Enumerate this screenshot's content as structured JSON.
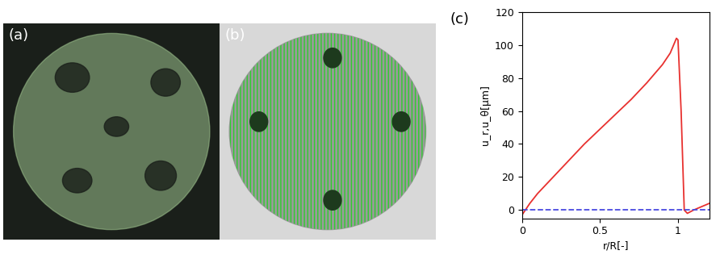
{
  "panel_labels": [
    "(a)",
    "(b)",
    "(c)"
  ],
  "chart_data": {
    "type": "line",
    "xlabel": "r/R[-]",
    "ylabel": "u_r,u_θ[μm]",
    "xlim": [
      0,
      1.2
    ],
    "xticks": [
      0,
      0.5,
      1
    ],
    "ylim": [
      -5,
      120
    ],
    "yticks": [
      0,
      20,
      40,
      60,
      80,
      100,
      120
    ],
    "grid": false,
    "series": [
      {
        "color": "#e8312f",
        "line_style": "solid",
        "x": [
          0,
          0.05,
          0.1,
          0.2,
          0.3,
          0.4,
          0.5,
          0.6,
          0.7,
          0.8,
          0.9,
          0.95,
          0.99,
          1.0,
          1.02,
          1.04,
          1.06,
          1.1,
          1.15,
          1.2
        ],
        "values": [
          -3,
          4,
          10,
          20,
          30,
          40,
          49,
          58,
          67,
          77,
          88,
          95,
          104,
          103,
          60,
          0,
          -2,
          0,
          2,
          4
        ]
      },
      {
        "color": "#4a4ae0",
        "line_style": "dashed",
        "x": [
          0,
          0.2,
          0.4,
          0.6,
          0.8,
          1.0,
          1.05,
          1.1,
          1.2
        ],
        "values": [
          0,
          0,
          0,
          0,
          0,
          0,
          0,
          0,
          0
        ]
      }
    ]
  }
}
